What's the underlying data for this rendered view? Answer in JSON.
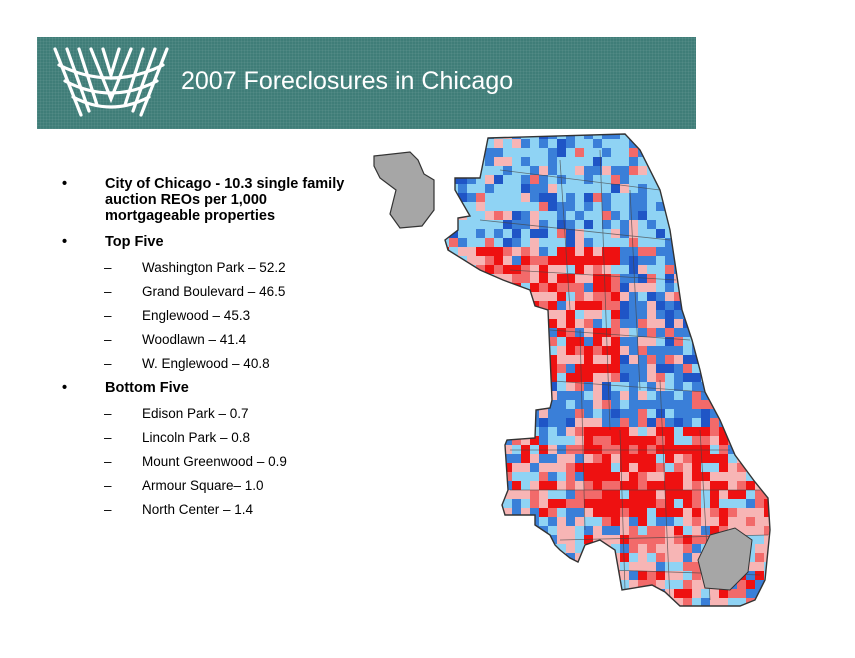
{
  "header": {
    "title": "2007 Foreclosures in Chicago",
    "logo_icon": "woven-basket-logo-icon",
    "background_color": "#3f7d78"
  },
  "summary": {
    "text": "City of Chicago -  10.3 single family auction REOs per 1,000 mortgageable properties"
  },
  "top_five": {
    "heading": "Top Five",
    "items": [
      {
        "text": "Washington Park – 52.2"
      },
      {
        "text": "Grand Boulevard – 46.5"
      },
      {
        "text": "Englewood – 45.3"
      },
      {
        "text": "Woodlawn – 41.4"
      },
      {
        "text": "W. Englewood – 40.8"
      }
    ]
  },
  "bottom_five": {
    "heading": "Bottom Five",
    "items": [
      {
        "text": "Edison Park – 0.7"
      },
      {
        "text": "Lincoln Park – 0.8"
      },
      {
        "text": "Mount Greenwood – 0.9"
      },
      {
        "text": "Armour Square– 1.0"
      },
      {
        "text": "North Center – 1.4"
      }
    ]
  },
  "bullet_glyph": "•",
  "dash_glyph": "–",
  "map": {
    "colors": {
      "deep_red": "#ee1111",
      "red": "#f26a6a",
      "pink": "#f7b5b5",
      "light_blue": "#8fd3f4",
      "blue": "#3a7fd8",
      "deep_blue": "#1f55c6",
      "no_data": "#a6a6a6"
    }
  }
}
